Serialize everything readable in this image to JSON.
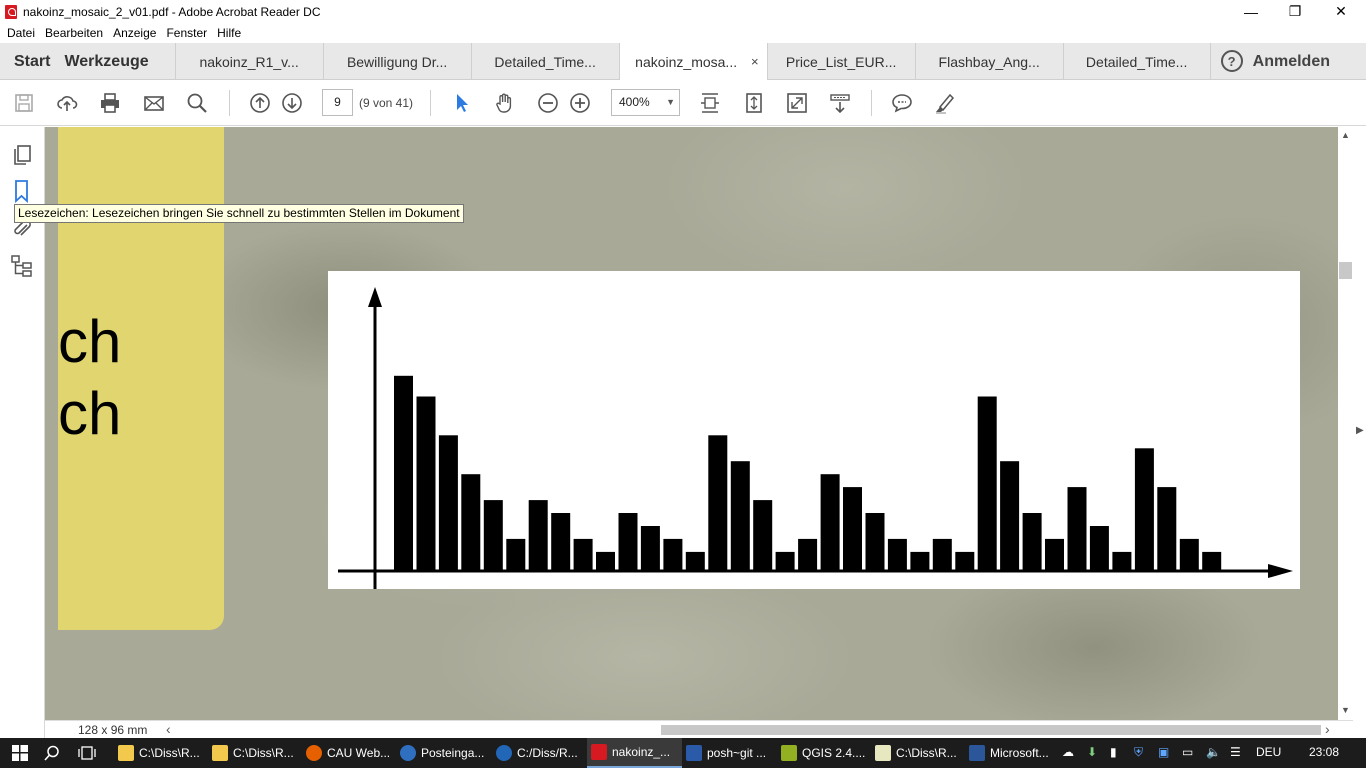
{
  "window": {
    "title": "nakoinz_mosaic_2_v01.pdf - Adobe Acrobat Reader DC",
    "minimize": "—",
    "restore": "❐",
    "close": "✕"
  },
  "menu": [
    "Datei",
    "Bearbeiten",
    "Anzeige",
    "Fenster",
    "Hilfe"
  ],
  "tabs": {
    "start": "Start",
    "tools": "Werkzeuge",
    "documents": [
      {
        "label": "nakoinz_R1_v...",
        "active": false
      },
      {
        "label": "Bewilligung Dr...",
        "active": false
      },
      {
        "label": "Detailed_Time...",
        "active": false
      },
      {
        "label": "nakoinz_mosa...",
        "active": true
      },
      {
        "label": "Price_List_EUR...",
        "active": false
      },
      {
        "label": "Flashbay_Ang...",
        "active": false
      },
      {
        "label": "Detailed_Time...",
        "active": false
      }
    ],
    "close_glyph": "×",
    "help": "?",
    "signin": "Anmelden"
  },
  "toolbar": {
    "page_number": "9",
    "page_count": "(9 von 41)",
    "zoom": "400%",
    "zoom_dropdown": "▼",
    "icons": [
      "save-icon",
      "upload-cloud-icon",
      "print-icon",
      "mail-icon",
      "search-icon",
      "page-up-icon",
      "page-down-icon",
      "select-cursor-icon",
      "hand-icon",
      "zoom-out-icon",
      "zoom-in-icon",
      "fit-width-icon",
      "fit-page-icon",
      "full-screen-icon",
      "scroll-mode-icon",
      "comment-icon",
      "highlight-pen-icon"
    ]
  },
  "nav_pane": {
    "icons": [
      "page-thumbnails-icon",
      "bookmark-icon",
      "attachment-icon",
      "layers-icon"
    ]
  },
  "tooltip": "Lesezeichen: Lesezeichen bringen Sie schnell zu bestimmten Stellen im Dokument",
  "document": {
    "text_line_1": "ch",
    "text_line_2": "ch",
    "page_size": "128 x 96 mm"
  },
  "chart_data": {
    "type": "bar",
    "title": "",
    "xlabel": "",
    "ylabel": "",
    "axes_arrows": true,
    "grid": false,
    "ylim": [
      0,
      10
    ],
    "values": [
      7.5,
      6.7,
      5.2,
      3.7,
      2.7,
      1.2,
      2.7,
      2.2,
      1.2,
      0.7,
      2.2,
      1.7,
      1.2,
      0.7,
      5.2,
      4.2,
      2.7,
      0.7,
      1.2,
      3.7,
      3.2,
      2.2,
      1.2,
      0.7,
      1.2,
      0.7,
      6.7,
      4.2,
      2.2,
      1.2,
      3.2,
      1.7,
      0.7,
      4.7,
      3.2,
      1.2,
      0.7
    ]
  },
  "statusbar": {
    "scroll_left": "‹",
    "scroll_right": "›",
    "scroll_up": "▲",
    "scroll_down": "▼",
    "page_prev": "◀",
    "page_next": "▶"
  },
  "taskbar": {
    "items": [
      {
        "label": "C:\\Diss\\R...",
        "icon": "folder-icon",
        "color": "#f2c94c",
        "active": false
      },
      {
        "label": "C:\\Diss\\R...",
        "icon": "folder-icon",
        "color": "#f2c94c",
        "active": false
      },
      {
        "label": "CAU Web...",
        "icon": "firefox-icon",
        "color": "#e66000",
        "active": false
      },
      {
        "label": "Posteinga...",
        "icon": "thunderbird-icon",
        "color": "#2f6fbf",
        "active": false
      },
      {
        "label": "C:/Diss/R...",
        "icon": "r-icon",
        "color": "#2266b8",
        "active": false
      },
      {
        "label": "nakoinz_...",
        "icon": "acrobat-icon",
        "color": "#d71921",
        "active": true
      },
      {
        "label": "posh~git ...",
        "icon": "powershell-icon",
        "color": "#2a5aa8",
        "active": false
      },
      {
        "label": "QGIS 2.4....",
        "icon": "qgis-icon",
        "color": "#93b023",
        "active": false
      },
      {
        "label": "C:\\Diss\\R...",
        "icon": "notepad-icon",
        "color": "#e8e8c0",
        "active": false
      },
      {
        "label": "Microsoft...",
        "icon": "word-icon",
        "color": "#2b579a",
        "active": false
      }
    ],
    "language": "DEU",
    "time": "23:08"
  }
}
